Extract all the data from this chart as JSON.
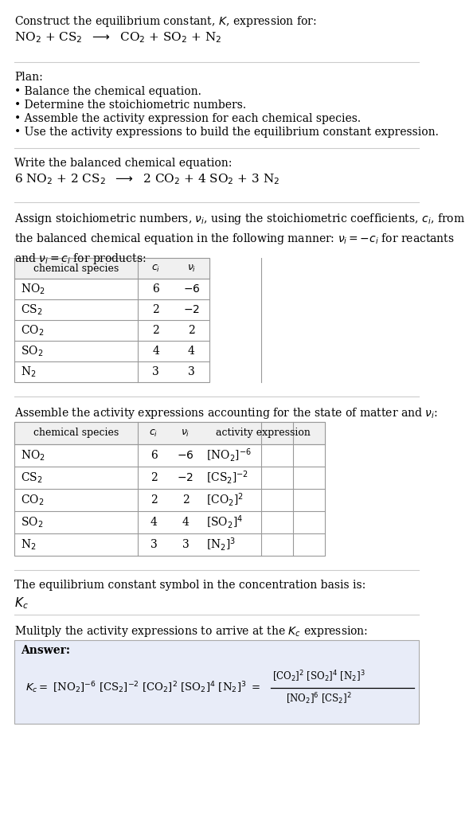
{
  "bg_color": "#ffffff",
  "text_color": "#000000",
  "table_line_color": "#999999",
  "sep_line_color": "#cccccc",
  "answer_box_color": "#e8ecf8",
  "font_size": 10.0,
  "small_font": 9.0,
  "sections": {
    "title": "Construct the equilibrium constant, $K$, expression for:",
    "reaction_unbalanced": "NO$_2$ + CS$_2$  $\\longrightarrow$  CO$_2$ + SO$_2$ + N$_2$",
    "plan_header": "Plan:",
    "plan_items": [
      "\\u2022 Balance the chemical equation.",
      "\\u2022 Determine the stoichiometric numbers.",
      "\\u2022 Assemble the activity expression for each chemical species.",
      "\\u2022 Use the activity expressions to build the equilibrium constant expression."
    ],
    "balanced_header": "Write the balanced chemical equation:",
    "reaction_balanced": "6 NO$_2$ + 2 CS$_2$  $\\longrightarrow$  2 CO$_2$ + 4 SO$_2$ + 3 N$_2$",
    "stoich_para": "Assign stoichiometric numbers, $\\nu_i$, using the stoichiometric coefficients, $c_i$, from\nthe balanced chemical equation in the following manner: $\\nu_i = -c_i$ for reactants\nand $\\nu_i = c_i$ for products:",
    "table1_headers": [
      "chemical species",
      "$c_i$",
      "$\\nu_i$"
    ],
    "table1_data": [
      [
        "NO$_2$",
        "6",
        "$-6$"
      ],
      [
        "CS$_2$",
        "2",
        "$-2$"
      ],
      [
        "CO$_2$",
        "2",
        "2"
      ],
      [
        "SO$_2$",
        "4",
        "4"
      ],
      [
        "N$_2$",
        "3",
        "3"
      ]
    ],
    "activity_para": "Assemble the activity expressions accounting for the state of matter and $\\nu_i$:",
    "table2_headers": [
      "chemical species",
      "$c_i$",
      "$\\nu_i$",
      "activity expression"
    ],
    "table2_data": [
      [
        "NO$_2$",
        "6",
        "$-6$",
        "[NO$_2$]$^{-6}$"
      ],
      [
        "CS$_2$",
        "2",
        "$-2$",
        "[CS$_2$]$^{-2}$"
      ],
      [
        "CO$_2$",
        "2",
        "2",
        "[CO$_2$]$^{2}$"
      ],
      [
        "SO$_2$",
        "4",
        "4",
        "[SO$_2$]$^{4}$"
      ],
      [
        "N$_2$",
        "3",
        "3",
        "[N$_2$]$^{3}$"
      ]
    ],
    "kc_para": "The equilibrium constant symbol in the concentration basis is:",
    "kc_symbol": "$K_c$",
    "multiply_para": "Mulitply the activity expressions to arrive at the $K_c$ expression:",
    "answer_label": "Answer:",
    "kc_left": "$K_c = $ [NO$_2$]$^{-6}$ [CS$_2$]$^{-2}$ [CO$_2$]$^{2}$ [SO$_2$]$^{4}$ [N$_2$]$^{3}$ $=$",
    "frac_numer": "[CO$_2$]$^{2}$ [SO$_2$]$^{4}$ [N$_2$]$^{3}$",
    "frac_denom": "[NO$_2$]$^{6}$ [CS$_2$]$^{2}$"
  }
}
